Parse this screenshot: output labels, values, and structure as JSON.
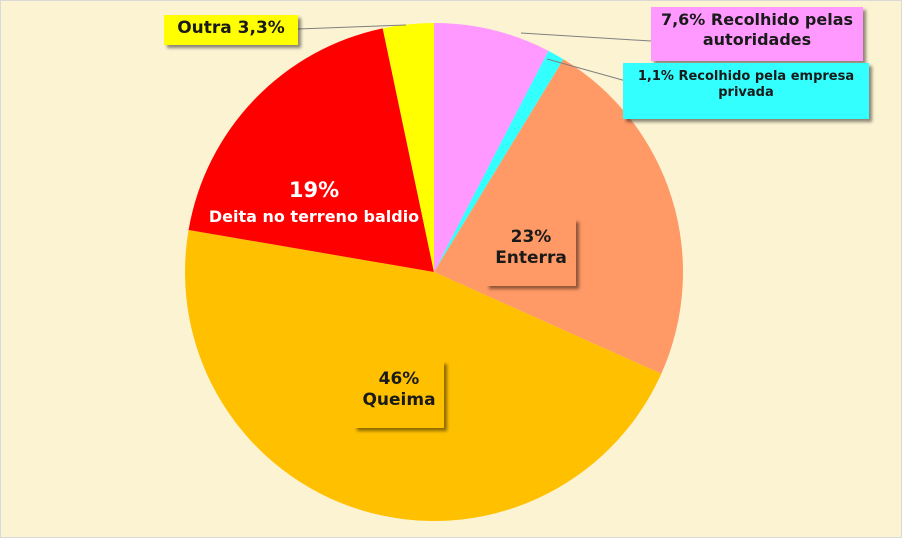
{
  "chart_data": {
    "type": "pie",
    "categories": [
      "Recolhido pelas autoridades",
      "Recolhido pela empresa privada",
      "Enterra",
      "Queima",
      "Deita no terreno baldio",
      "Outra"
    ],
    "values": [
      7.6,
      1.1,
      23,
      46,
      19,
      3.3
    ],
    "value_labels": [
      "7,6%",
      "1,1%",
      "23%",
      "46%",
      "19%",
      "3,3%"
    ],
    "colors": [
      "#ff99ff",
      "#33ffff",
      "#ff9966",
      "#ffc000",
      "#ff0000",
      "#ffff00"
    ]
  }
}
